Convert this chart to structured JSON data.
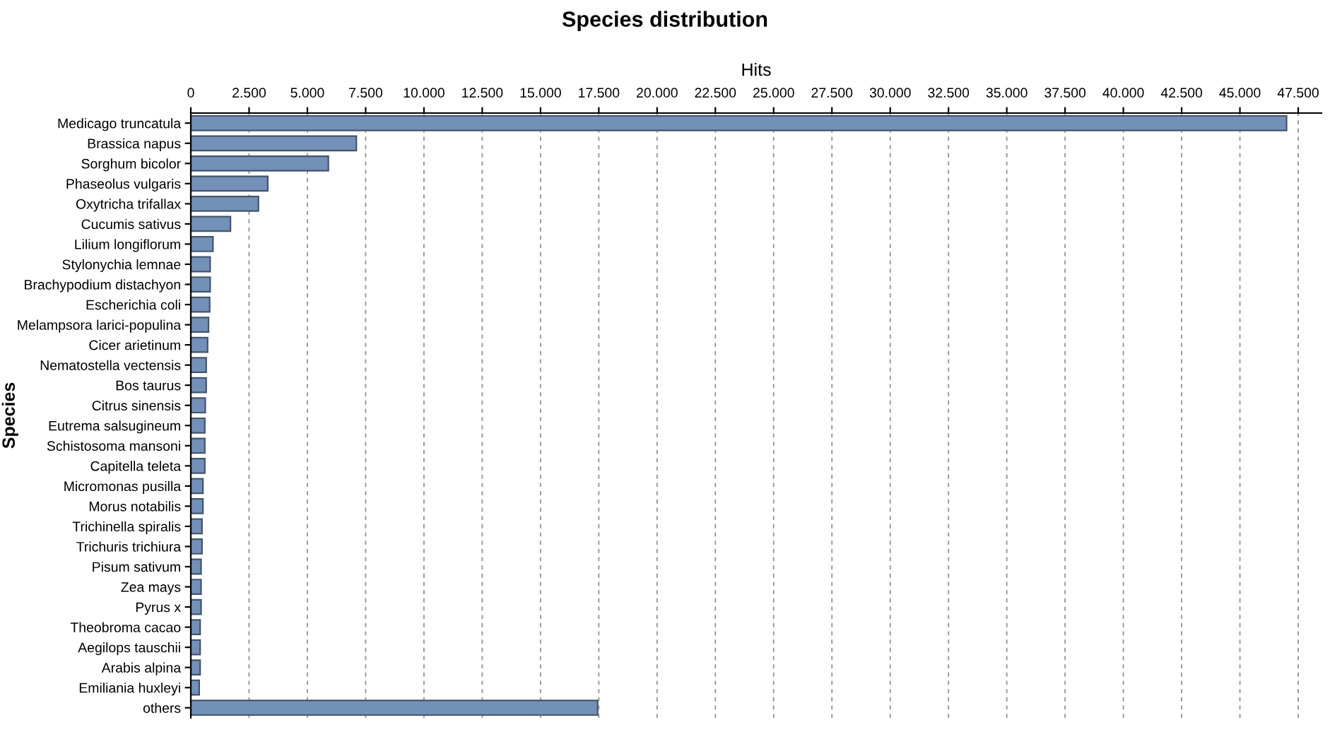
{
  "chart_data": {
    "type": "bar",
    "orientation": "horizontal",
    "title": "Species distribution",
    "xlabel": "Hits",
    "ylabel": "Species",
    "categories": [
      "Medicago truncatula",
      "Brassica napus",
      "Sorghum bicolor",
      "Phaseolus vulgaris",
      "Oxytricha trifallax",
      "Cucumis sativus",
      "Lilium longiflorum",
      "Stylonychia lemnae",
      "Brachypodium distachyon",
      "Escherichia coli",
      "Melampsora larici-populina",
      "Cicer arietinum",
      "Nematostella vectensis",
      "Bos taurus",
      "Citrus sinensis",
      "Eutrema salsugineum",
      "Schistosoma mansoni",
      "Capitella teleta",
      "Micromonas pusilla",
      "Morus notabilis",
      "Trichinella spiralis",
      "Trichuris trichiura",
      "Pisum sativum",
      "Zea mays",
      "Pyrus x",
      "Theobroma cacao",
      "Aegilops tauschii",
      "Arabis alpina",
      "Emiliania huxleyi",
      "others"
    ],
    "values": [
      47000,
      7100,
      5900,
      3300,
      2900,
      1700,
      950,
      830,
      830,
      810,
      760,
      720,
      660,
      660,
      620,
      600,
      600,
      600,
      520,
      520,
      480,
      480,
      440,
      440,
      440,
      400,
      400,
      400,
      360,
      17450
    ],
    "color": "#7390b8",
    "xlim": [
      0,
      48500
    ],
    "xticks": [
      0,
      {
        "value": 2500,
        "label": "2.500"
      },
      {
        "value": 5000,
        "label": "5.000"
      },
      {
        "value": 7500,
        "label": "7.500"
      },
      {
        "value": 10000,
        "label": "10.000"
      },
      {
        "value": 12500,
        "label": "12.500"
      },
      {
        "value": 15000,
        "label": "15.000"
      },
      {
        "value": 17500,
        "label": "17.500"
      },
      {
        "value": 20000,
        "label": "20.000"
      },
      {
        "value": 22500,
        "label": "22.500"
      },
      {
        "value": 25000,
        "label": "25.000"
      },
      {
        "value": 27500,
        "label": "27.500"
      },
      {
        "value": 30000,
        "label": "30.000"
      },
      {
        "value": 32500,
        "label": "32.500"
      },
      {
        "value": 35000,
        "label": "35.000"
      },
      {
        "value": 37500,
        "label": "37.500"
      },
      {
        "value": 40000,
        "label": "40.000"
      },
      {
        "value": 42500,
        "label": "42.500"
      },
      {
        "value": 45000,
        "label": "45.000"
      },
      {
        "value": 47500,
        "label": "47.500"
      }
    ],
    "grid": "x"
  }
}
